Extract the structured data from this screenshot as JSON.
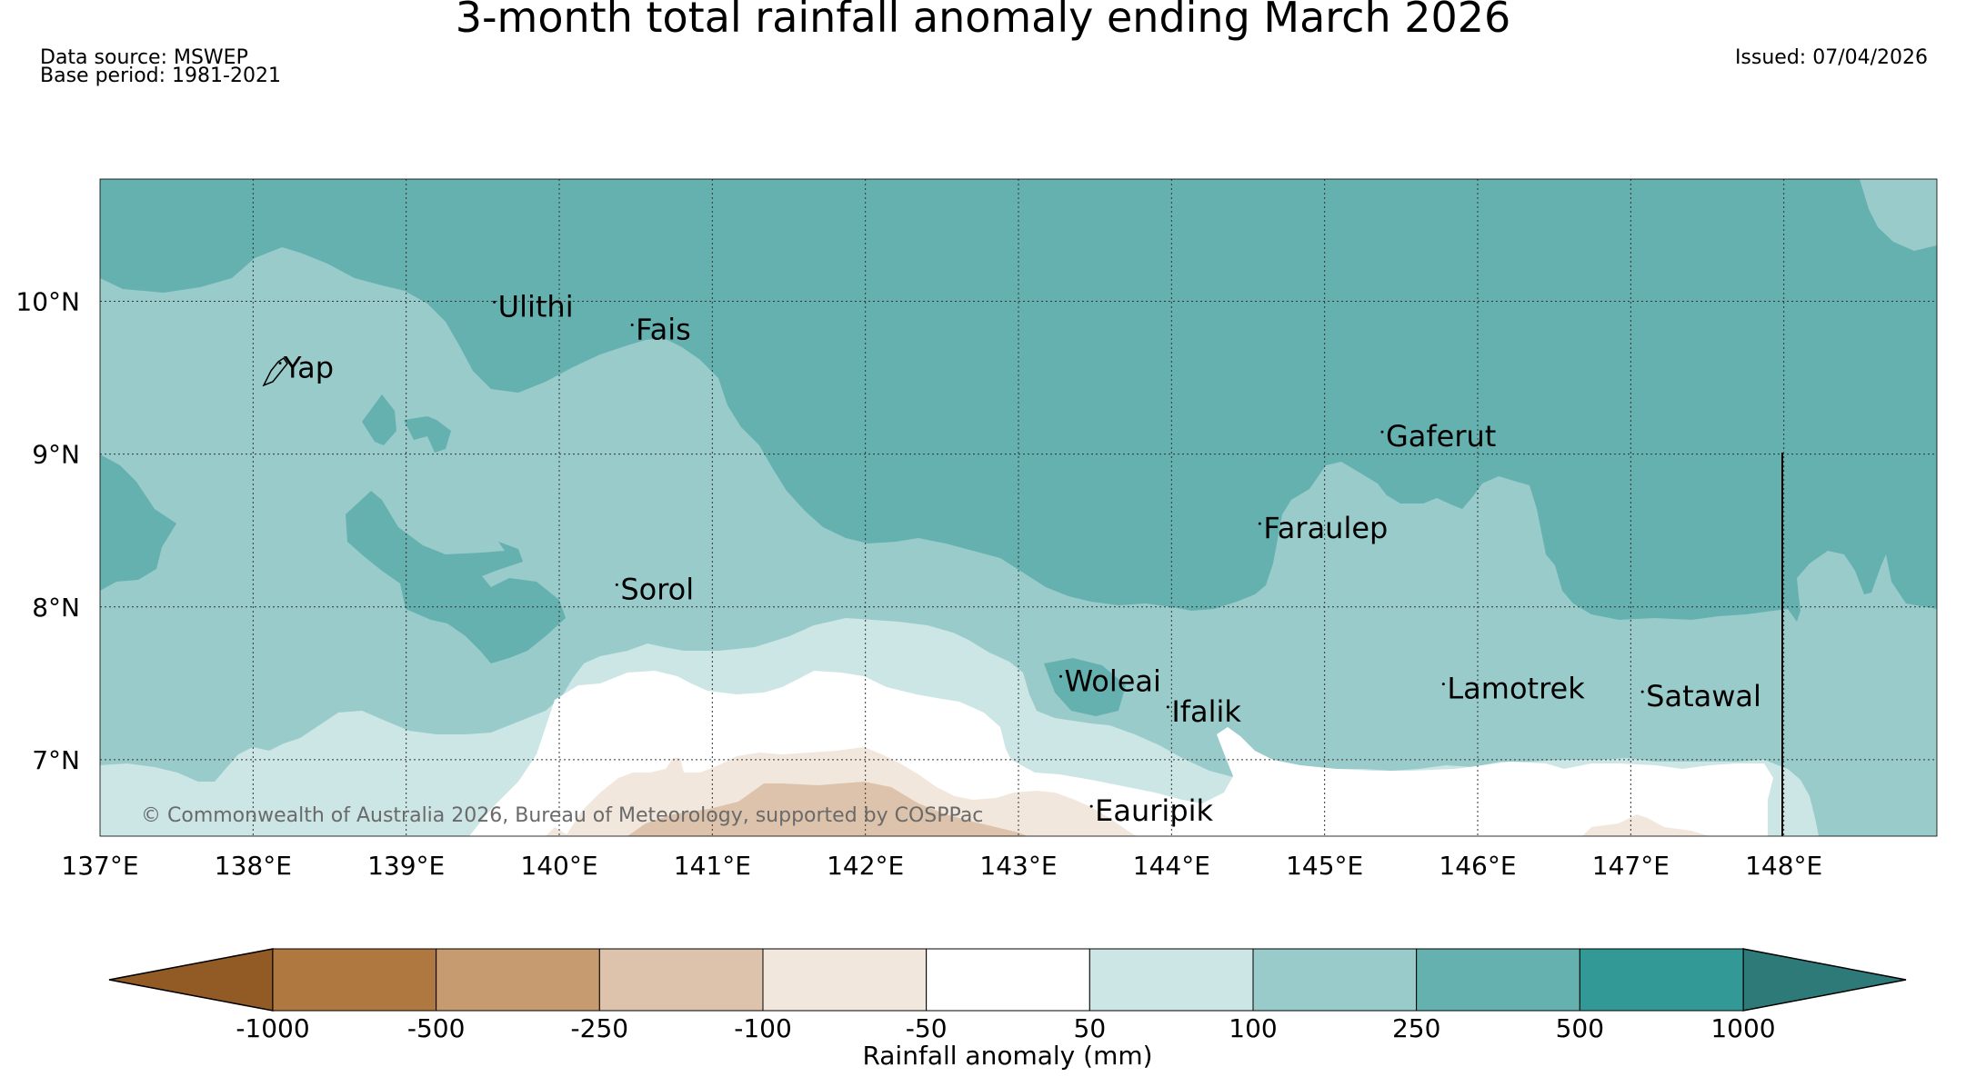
{
  "title": "3-month total rainfall anomaly ending March 2026",
  "data_source": "Data source: MSWEP",
  "base_period": "Base period: 1981-2021",
  "issued": "Issued: 07/04/2026",
  "copyright": "© Commonwealth of Australia 2026, Bureau of Meteorology, supported by COSPPac",
  "map": {
    "lon_range": [
      137.0,
      149.0
    ],
    "lat_range": [
      6.5,
      10.8
    ],
    "lon_ticks": [
      {
        "value": 137,
        "label": "137°E"
      },
      {
        "value": 138,
        "label": "138°E"
      },
      {
        "value": 139,
        "label": "139°E"
      },
      {
        "value": 140,
        "label": "140°E"
      },
      {
        "value": 141,
        "label": "141°E"
      },
      {
        "value": 142,
        "label": "142°E"
      },
      {
        "value": 143,
        "label": "143°E"
      },
      {
        "value": 144,
        "label": "144°E"
      },
      {
        "value": 145,
        "label": "145°E"
      },
      {
        "value": 146,
        "label": "146°E"
      },
      {
        "value": 147,
        "label": "147°E"
      },
      {
        "value": 148,
        "label": "148°E"
      }
    ],
    "lat_ticks": [
      {
        "value": 10,
        "label": "10°N"
      },
      {
        "value": 9,
        "label": "9°N"
      },
      {
        "value": 8,
        "label": "8°N"
      },
      {
        "value": 7,
        "label": "7°N"
      }
    ],
    "places": [
      {
        "name": "Yap",
        "lon": 138.2,
        "lat": 9.5
      },
      {
        "name": "Ulithi",
        "lon": 139.6,
        "lat": 9.9
      },
      {
        "name": "Fais",
        "lon": 140.5,
        "lat": 9.75
      },
      {
        "name": "Gaferut",
        "lon": 145.4,
        "lat": 9.05
      },
      {
        "name": "Faraulep",
        "lon": 144.6,
        "lat": 8.45
      },
      {
        "name": "Sorol",
        "lon": 140.4,
        "lat": 8.05
      },
      {
        "name": "Woleai",
        "lon": 143.3,
        "lat": 7.45
      },
      {
        "name": "Ifalik",
        "lon": 144.0,
        "lat": 7.25
      },
      {
        "name": "Lamotrek",
        "lon": 145.8,
        "lat": 7.4
      },
      {
        "name": "Satawal",
        "lon": 147.1,
        "lat": 7.35
      },
      {
        "name": "Eauripik",
        "lon": 143.5,
        "lat": 6.6
      }
    ],
    "colors": {
      "class_500_1000": "#339996",
      "class_250_500": "#65b1b0",
      "class_100_250": "#99cbcb",
      "class_50_100": "#cce5e5",
      "class_n50_50": "#ffffff",
      "class_n100_n50": "#f2e7dd",
      "class_n250_n100": "#ddc3ab",
      "class_n500_n250": "#c69b70"
    }
  },
  "colorbar": {
    "label": "Rainfall anomaly (mm)",
    "bounds": [
      -1000,
      -500,
      -250,
      -100,
      -50,
      50,
      100,
      250,
      500,
      1000
    ],
    "tick_labels": [
      "-1000",
      "-500",
      "-250",
      "-100",
      "-50",
      "50",
      "100",
      "250",
      "500",
      "1000"
    ],
    "colors": [
      "#b07841",
      "#c69b70",
      "#ddc3ab",
      "#f2e7dd",
      "#ffffff",
      "#cce5e5",
      "#99cbcb",
      "#65b1b0",
      "#339996"
    ],
    "extend_low_color": "#925a24",
    "extend_high_color": "#2d7a78"
  }
}
